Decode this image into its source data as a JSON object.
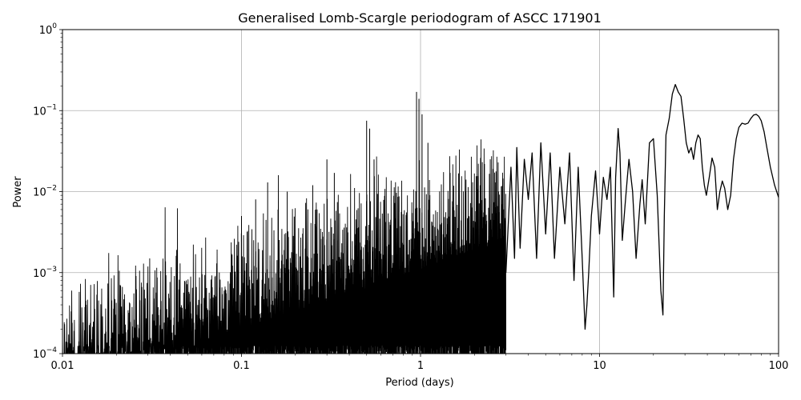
{
  "chart_data": {
    "type": "line",
    "title": "Generalised Lomb-Scargle periodogram of ASCC 171901",
    "xlabel": "Period (days)",
    "ylabel": "Power",
    "xscale": "log",
    "yscale": "log",
    "xlim": [
      0.01,
      100
    ],
    "ylim": [
      0.0001,
      1
    ],
    "grid": true,
    "line_color": "#000000",
    "x_ticks": [
      {
        "value": 0.01,
        "label": "0.01"
      },
      {
        "value": 0.1,
        "label": "0.1"
      },
      {
        "value": 1,
        "label": "1"
      },
      {
        "value": 10,
        "label": "10"
      },
      {
        "value": 100,
        "label": "100"
      }
    ],
    "y_ticks": [
      {
        "value": 0.0001,
        "base": "10",
        "exp": "−4"
      },
      {
        "value": 0.001,
        "base": "10",
        "exp": "−3"
      },
      {
        "value": 0.01,
        "base": "10",
        "exp": "−2"
      },
      {
        "value": 0.1,
        "base": "10",
        "exp": "−1"
      },
      {
        "value": 1,
        "base": "10",
        "exp": "0"
      }
    ],
    "series": [
      {
        "x": [
          3.0,
          3.2,
          3.35,
          3.45,
          3.6,
          3.8,
          4.0,
          4.2,
          4.45,
          4.7,
          5.0,
          5.3,
          5.6,
          6.0,
          6.4,
          6.8,
          7.2,
          7.6,
          8.0,
          8.3,
          8.5,
          8.7,
          9.0,
          9.5,
          10.0,
          10.5,
          11.0,
          11.5,
          12.0,
          12.3,
          12.7,
          13.0,
          13.4,
          13.9,
          14.3,
          14.6,
          15.3,
          16.0,
          16.8,
          17.3,
          18.0,
          19.0,
          20.0,
          21.0,
          22.0,
          22.6,
          23.0,
          23.5,
          24.5,
          25.5,
          26.5,
          27.5,
          28.5,
          29.5,
          30.5,
          31.5,
          32.5,
          33.5,
          34.5,
          35.5,
          36.5,
          37.5,
          38.5,
          39.5,
          41.0,
          42.5,
          44.0,
          45.5,
          47.0,
          48.5,
          50.0,
          52.0,
          54.0,
          56.0,
          58.0,
          60.0,
          62.5,
          65.0,
          67.5,
          70.0,
          72.5,
          75.0,
          77.5,
          80.0,
          83.0,
          86.0,
          90.0,
          95.0,
          100.0
        ],
        "values": [
          0.001,
          0.02,
          0.0015,
          0.035,
          0.002,
          0.025,
          0.008,
          0.03,
          0.0015,
          0.04,
          0.003,
          0.03,
          0.0015,
          0.02,
          0.004,
          0.03,
          0.0008,
          0.02,
          0.0015,
          0.0002,
          0.0004,
          0.001,
          0.005,
          0.018,
          0.003,
          0.015,
          0.008,
          0.02,
          0.0005,
          0.015,
          0.06,
          0.03,
          0.0025,
          0.007,
          0.015,
          0.025,
          0.01,
          0.0015,
          0.007,
          0.014,
          0.004,
          0.04,
          0.045,
          0.009,
          0.0006,
          0.0003,
          0.005,
          0.05,
          0.08,
          0.16,
          0.21,
          0.17,
          0.15,
          0.08,
          0.04,
          0.03,
          0.035,
          0.025,
          0.04,
          0.05,
          0.045,
          0.02,
          0.012,
          0.009,
          0.015,
          0.026,
          0.02,
          0.006,
          0.01,
          0.0135,
          0.011,
          0.006,
          0.009,
          0.025,
          0.045,
          0.062,
          0.07,
          0.068,
          0.07,
          0.08,
          0.088,
          0.09,
          0.085,
          0.075,
          0.055,
          0.035,
          0.02,
          0.012,
          0.0085
        ]
      }
    ]
  }
}
